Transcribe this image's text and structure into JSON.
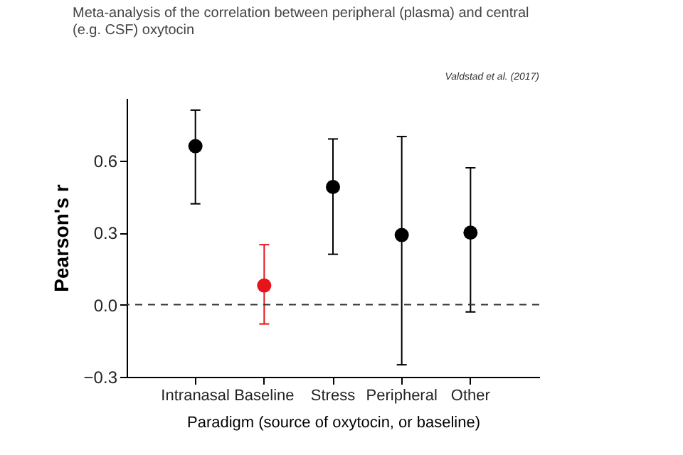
{
  "chart_data": {
    "type": "scatter",
    "title": "Meta-analysis of the correlation between peripheral (plasma) and central (e.g. CSF) oxytocin",
    "annotations": [
      "Valdstad et al. (2017)"
    ],
    "xlabel": "Paradigm (source of oxytocin, or baseline)",
    "ylabel": "Pearson's r",
    "categories": [
      "Intranasal",
      "Baseline",
      "Stress",
      "Peripheral",
      "Other"
    ],
    "values": [
      0.66,
      0.08,
      0.49,
      0.29,
      0.3
    ],
    "colors": [
      "#000000",
      "#e8141c",
      "#000000",
      "#000000",
      "#000000"
    ],
    "errors": [
      [
        0.42,
        0.81
      ],
      [
        -0.08,
        0.25
      ],
      [
        0.21,
        0.69
      ],
      [
        -0.25,
        0.7
      ],
      [
        -0.03,
        0.57
      ]
    ],
    "ylim": [
      -0.3,
      0.86
    ],
    "yticks": [
      {
        "value": -0.3,
        "label": "−0.3"
      },
      {
        "value": 0,
        "label": "0.0"
      },
      {
        "value": 0.3,
        "label": "0.3"
      },
      {
        "value": 0.6,
        "label": "0.6"
      }
    ],
    "ref_lines": [
      {
        "axis": "y",
        "value": 0,
        "line_style": "dashed"
      }
    ],
    "marker": "circle",
    "grid": false
  }
}
